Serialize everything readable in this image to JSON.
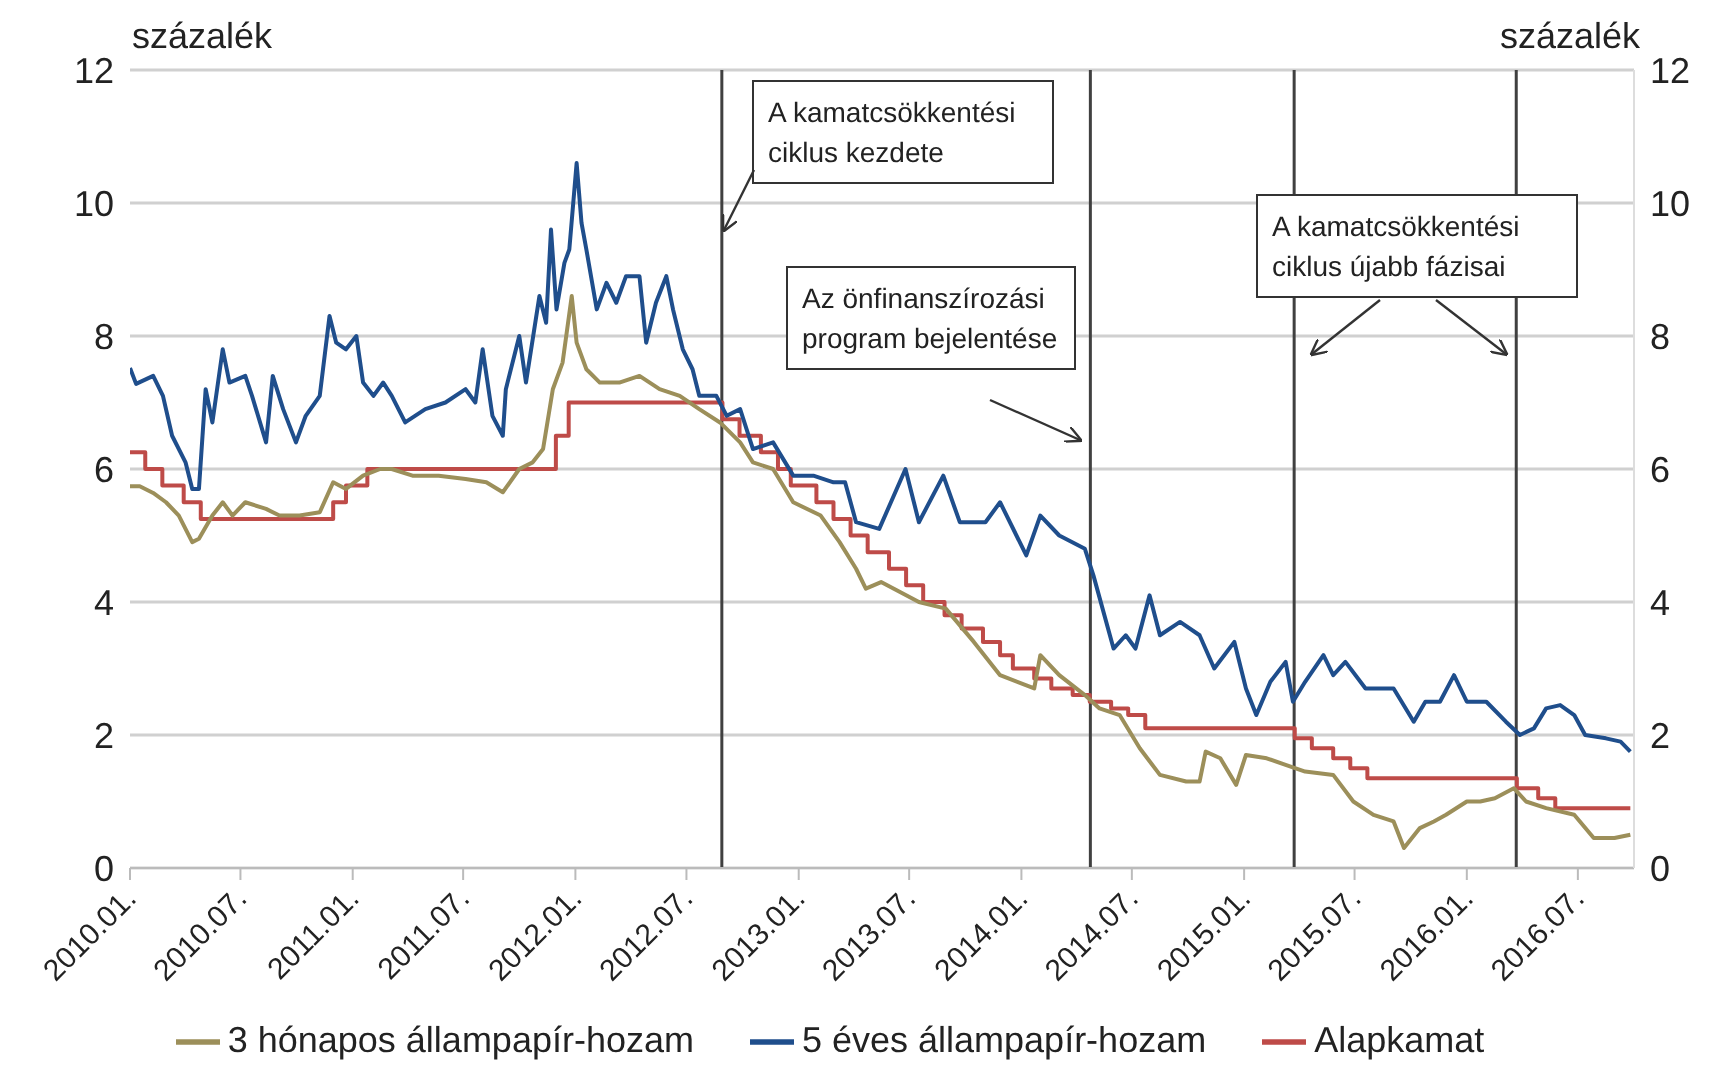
{
  "chart_data": {
    "type": "line",
    "ylabel": "százalék",
    "y2label": "százalék",
    "xlim": [
      "2010-01-01",
      "2016-10-01"
    ],
    "xticks": [
      {
        "value": "2010-01-01",
        "label": "2010.01."
      },
      {
        "value": "2010-07-01",
        "label": "2010.07."
      },
      {
        "value": "2011-01-01",
        "label": "2011.01."
      },
      {
        "value": "2011-07-01",
        "label": "2011.07."
      },
      {
        "value": "2012-01-01",
        "label": "2012.01."
      },
      {
        "value": "2012-07-01",
        "label": "2012.07."
      },
      {
        "value": "2013-01-01",
        "label": "2013.01."
      },
      {
        "value": "2013-07-01",
        "label": "2013.07."
      },
      {
        "value": "2014-01-01",
        "label": "2014.01."
      },
      {
        "value": "2014-07-01",
        "label": "2014.07."
      },
      {
        "value": "2015-01-01",
        "label": "2015.01."
      },
      {
        "value": "2015-07-01",
        "label": "2015.07."
      },
      {
        "value": "2016-01-01",
        "label": "2016.01."
      },
      {
        "value": "2016-07-01",
        "label": "2016.07."
      }
    ],
    "ylim": [
      0,
      12
    ],
    "yticks": [
      0,
      2,
      4,
      6,
      8,
      10,
      12
    ],
    "y2lim": [
      0,
      12
    ],
    "y2ticks": [
      0,
      2,
      4,
      6,
      8,
      10,
      12
    ],
    "grid": "y",
    "legend": "bottom",
    "marker": "none",
    "line_style": "solid",
    "series": [
      {
        "name": "Alapkamat",
        "type": "step",
        "color": "#be4b48",
        "x": [
          "2010-01-01",
          "2010-01-26",
          "2010-02-23",
          "2010-03-30",
          "2010-04-27",
          "2010-11-30",
          "2010-12-21",
          "2011-01-25",
          "2011-11-30",
          "2011-12-21",
          "2012-08-29",
          "2012-09-26",
          "2012-10-31",
          "2012-11-28",
          "2012-12-19",
          "2013-01-30",
          "2013-02-27",
          "2013-03-27",
          "2013-04-24",
          "2013-05-29",
          "2013-06-26",
          "2013-07-24",
          "2013-08-28",
          "2013-09-25",
          "2013-10-30",
          "2013-11-27",
          "2013-12-18",
          "2014-01-22",
          "2014-02-19",
          "2014-03-26",
          "2014-04-23",
          "2014-05-28",
          "2014-06-25",
          "2014-07-23",
          "2015-03-25",
          "2015-04-22",
          "2015-05-27",
          "2015-06-24",
          "2015-07-22",
          "2016-03-23",
          "2016-04-27",
          "2016-05-25",
          "2016-09-25"
        ],
        "values": [
          6.25,
          6.0,
          5.75,
          5.5,
          5.25,
          5.5,
          5.75,
          6.0,
          6.5,
          7.0,
          6.75,
          6.5,
          6.25,
          6.0,
          5.75,
          5.5,
          5.25,
          5.0,
          4.75,
          4.5,
          4.25,
          4.0,
          3.8,
          3.6,
          3.4,
          3.2,
          3.0,
          2.85,
          2.7,
          2.6,
          2.5,
          2.4,
          2.3,
          2.1,
          1.95,
          1.8,
          1.65,
          1.5,
          1.35,
          1.2,
          1.05,
          0.9,
          0.9
        ]
      },
      {
        "name": "3 hónapos állampapír-hozam",
        "color": "#9c8f5a",
        "x": [
          "2010-01-01",
          "2010-01-17",
          "2010-02-08",
          "2010-03-01",
          "2010-03-22",
          "2010-04-13",
          "2010-04-24",
          "2010-05-16",
          "2010-06-02",
          "2010-06-18",
          "2010-07-09",
          "2010-08-12",
          "2010-09-03",
          "2010-10-06",
          "2010-11-08",
          "2010-11-30",
          "2010-12-21",
          "2011-01-18",
          "2011-02-15",
          "2011-03-06",
          "2011-04-09",
          "2011-05-22",
          "2011-07-05",
          "2011-08-08",
          "2011-09-04",
          "2011-10-01",
          "2011-10-23",
          "2011-11-09",
          "2011-11-25",
          "2011-12-11",
          "2011-12-26",
          "2012-01-03",
          "2012-01-19",
          "2012-02-10",
          "2012-03-13",
          "2012-04-15",
          "2012-05-18",
          "2012-06-20",
          "2012-07-22",
          "2012-08-25",
          "2012-09-27",
          "2012-10-18",
          "2012-11-20",
          "2012-12-23",
          "2013-02-06",
          "2013-03-09",
          "2013-04-05",
          "2013-04-21",
          "2013-05-16",
          "2013-07-17",
          "2013-08-30",
          "2013-10-15",
          "2013-11-27",
          "2014-01-22",
          "2014-02-01",
          "2014-03-04",
          "2014-04-15",
          "2014-05-09",
          "2014-06-11",
          "2014-07-14",
          "2014-08-16",
          "2014-09-28",
          "2014-10-20",
          "2014-10-30",
          "2014-11-23",
          "2014-12-19",
          "2015-01-04",
          "2015-02-07",
          "2015-03-10",
          "2015-04-11",
          "2015-05-27",
          "2015-06-29",
          "2015-08-01",
          "2015-09-03",
          "2015-09-20",
          "2015-10-16",
          "2015-11-08",
          "2015-11-28",
          "2016-01-01",
          "2016-01-23",
          "2016-02-16",
          "2016-03-18",
          "2016-04-07",
          "2016-05-10",
          "2016-06-25",
          "2016-07-27",
          "2016-08-30",
          "2016-09-25"
        ],
        "values": [
          5.74,
          5.74,
          5.64,
          5.5,
          5.3,
          4.9,
          4.95,
          5.3,
          5.5,
          5.3,
          5.5,
          5.4,
          5.3,
          5.3,
          5.35,
          5.8,
          5.7,
          5.9,
          6.0,
          6.0,
          5.9,
          5.9,
          5.85,
          5.8,
          5.65,
          6.0,
          6.1,
          6.3,
          7.2,
          7.6,
          8.6,
          7.9,
          7.5,
          7.3,
          7.3,
          7.4,
          7.2,
          7.1,
          6.9,
          6.7,
          6.4,
          6.1,
          6.0,
          5.5,
          5.3,
          4.9,
          4.5,
          4.2,
          4.3,
          4.0,
          3.9,
          3.4,
          2.9,
          2.7,
          3.2,
          2.9,
          2.6,
          2.4,
          2.3,
          1.8,
          1.4,
          1.3,
          1.3,
          1.75,
          1.65,
          1.25,
          1.7,
          1.65,
          1.55,
          1.45,
          1.4,
          1.0,
          0.8,
          0.7,
          0.3,
          0.6,
          0.7,
          0.8,
          1.0,
          1.0,
          1.05,
          1.2,
          1.0,
          0.9,
          0.8,
          0.45,
          0.45,
          0.5
        ]
      },
      {
        "name": "5 éves állampapír-hozam",
        "color": "#1f4e8c",
        "x": [
          "2010-01-01",
          "2010-01-11",
          "2010-02-08",
          "2010-02-24",
          "2010-03-11",
          "2010-04-02",
          "2010-04-13",
          "2010-04-24",
          "2010-05-05",
          "2010-05-16",
          "2010-06-02",
          "2010-06-13",
          "2010-07-09",
          "2010-07-20",
          "2010-08-12",
          "2010-08-23",
          "2010-09-09",
          "2010-09-30",
          "2010-10-16",
          "2010-11-08",
          "2010-11-24",
          "2010-12-05",
          "2010-12-21",
          "2011-01-07",
          "2011-01-18",
          "2011-02-04",
          "2011-02-20",
          "2011-03-06",
          "2011-03-28",
          "2011-04-30",
          "2011-06-02",
          "2011-07-05",
          "2011-07-21",
          "2011-08-02",
          "2011-08-18",
          "2011-09-04",
          "2011-09-09",
          "2011-10-01",
          "2011-10-12",
          "2011-11-03",
          "2011-11-14",
          "2011-11-22",
          "2011-12-01",
          "2011-12-14",
          "2011-12-22",
          "2012-01-03",
          "2012-01-11",
          "2012-01-19",
          "2012-02-05",
          "2012-02-21",
          "2012-03-08",
          "2012-03-24",
          "2012-04-15",
          "2012-04-26",
          "2012-05-12",
          "2012-05-29",
          "2012-06-09",
          "2012-06-25",
          "2012-07-11",
          "2012-07-22",
          "2012-08-19",
          "2012-09-05",
          "2012-09-27",
          "2012-10-18",
          "2012-11-20",
          "2012-12-23",
          "2013-01-25",
          "2013-02-27",
          "2013-03-18",
          "2013-04-05",
          "2013-05-13",
          "2013-06-25",
          "2013-07-17",
          "2013-08-26",
          "2013-09-22",
          "2013-11-03",
          "2013-11-27",
          "2014-01-09",
          "2014-02-01",
          "2014-03-04",
          "2014-04-15",
          "2014-04-29",
          "2014-06-01",
          "2014-06-21",
          "2014-07-07",
          "2014-07-30",
          "2014-08-16",
          "2014-09-18",
          "2014-10-20",
          "2014-11-13",
          "2014-12-16",
          "2015-01-04",
          "2015-01-21",
          "2015-02-13",
          "2015-03-10",
          "2015-03-22",
          "2015-04-11",
          "2015-05-11",
          "2015-05-27",
          "2015-06-16",
          "2015-07-19",
          "2015-09-03",
          "2015-10-06",
          "2015-10-25",
          "2015-11-18",
          "2015-12-11",
          "2016-01-01",
          "2016-02-02",
          "2016-03-05",
          "2016-03-28",
          "2016-04-20",
          "2016-05-10",
          "2016-06-02",
          "2016-06-25",
          "2016-07-13",
          "2016-08-16",
          "2016-09-09",
          "2016-09-25"
        ],
        "values": [
          7.52,
          7.28,
          7.4,
          7.1,
          6.5,
          6.1,
          5.7,
          5.7,
          7.2,
          6.7,
          7.8,
          7.3,
          7.4,
          7.1,
          6.4,
          7.4,
          6.9,
          6.4,
          6.8,
          7.1,
          8.3,
          7.9,
          7.8,
          8.0,
          7.3,
          7.1,
          7.3,
          7.1,
          6.7,
          6.9,
          7.0,
          7.2,
          7.0,
          7.8,
          6.8,
          6.5,
          7.2,
          8.0,
          7.3,
          8.6,
          8.2,
          9.6,
          8.4,
          9.1,
          9.3,
          10.6,
          9.7,
          9.3,
          8.4,
          8.8,
          8.5,
          8.9,
          8.9,
          7.9,
          8.5,
          8.9,
          8.4,
          7.8,
          7.5,
          7.1,
          7.1,
          6.8,
          6.9,
          6.3,
          6.4,
          5.9,
          5.9,
          5.8,
          5.8,
          5.2,
          5.1,
          6.0,
          5.2,
          5.9,
          5.2,
          5.2,
          5.5,
          4.7,
          5.3,
          5.0,
          4.8,
          4.4,
          3.3,
          3.5,
          3.3,
          4.1,
          3.5,
          3.7,
          3.5,
          3.0,
          3.4,
          2.7,
          2.3,
          2.8,
          3.1,
          2.5,
          2.8,
          3.2,
          2.9,
          3.1,
          2.7,
          2.7,
          2.2,
          2.5,
          2.5,
          2.9,
          2.5,
          2.5,
          2.2,
          2.0,
          2.1,
          2.4,
          2.45,
          2.3,
          2.0,
          1.95,
          1.9,
          1.75
        ]
      }
    ],
    "ref_lines": [
      {
        "axis": "x",
        "value": "2012-08-28",
        "color": "#404040"
      },
      {
        "axis": "x",
        "value": "2014-04-24",
        "color": "#404040"
      },
      {
        "axis": "x",
        "value": "2015-03-24",
        "color": "#404040"
      },
      {
        "axis": "x",
        "value": "2016-03-22",
        "color": "#404040"
      }
    ],
    "annotations": [
      "A kamatcsökkentési ciklus kezdete",
      "Az önfinanszírozási program bejelentése",
      "A kamatcsökkentési ciklus újabb fázisai"
    ]
  }
}
